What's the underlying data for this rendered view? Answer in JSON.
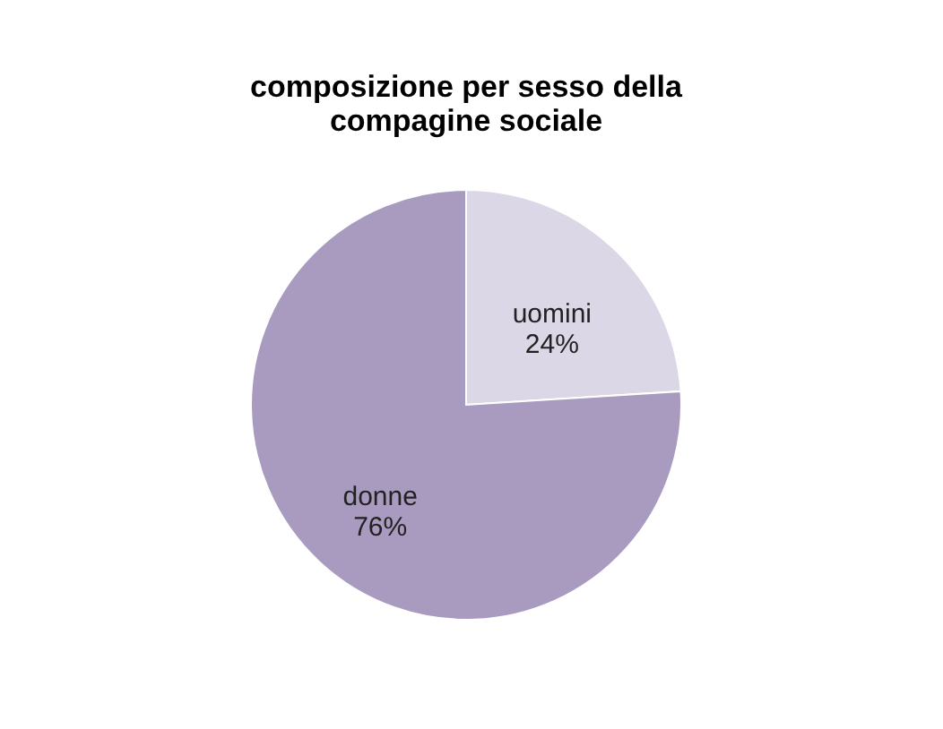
{
  "chart_data": {
    "type": "pie",
    "title": "composizione per sesso della compagine sociale",
    "categories": [
      "uomini",
      "donne"
    ],
    "values": [
      24,
      76
    ],
    "value_labels": [
      "24%",
      "76%"
    ],
    "colors": [
      "#dcd7e6",
      "#a99bbf"
    ],
    "legend": false
  }
}
